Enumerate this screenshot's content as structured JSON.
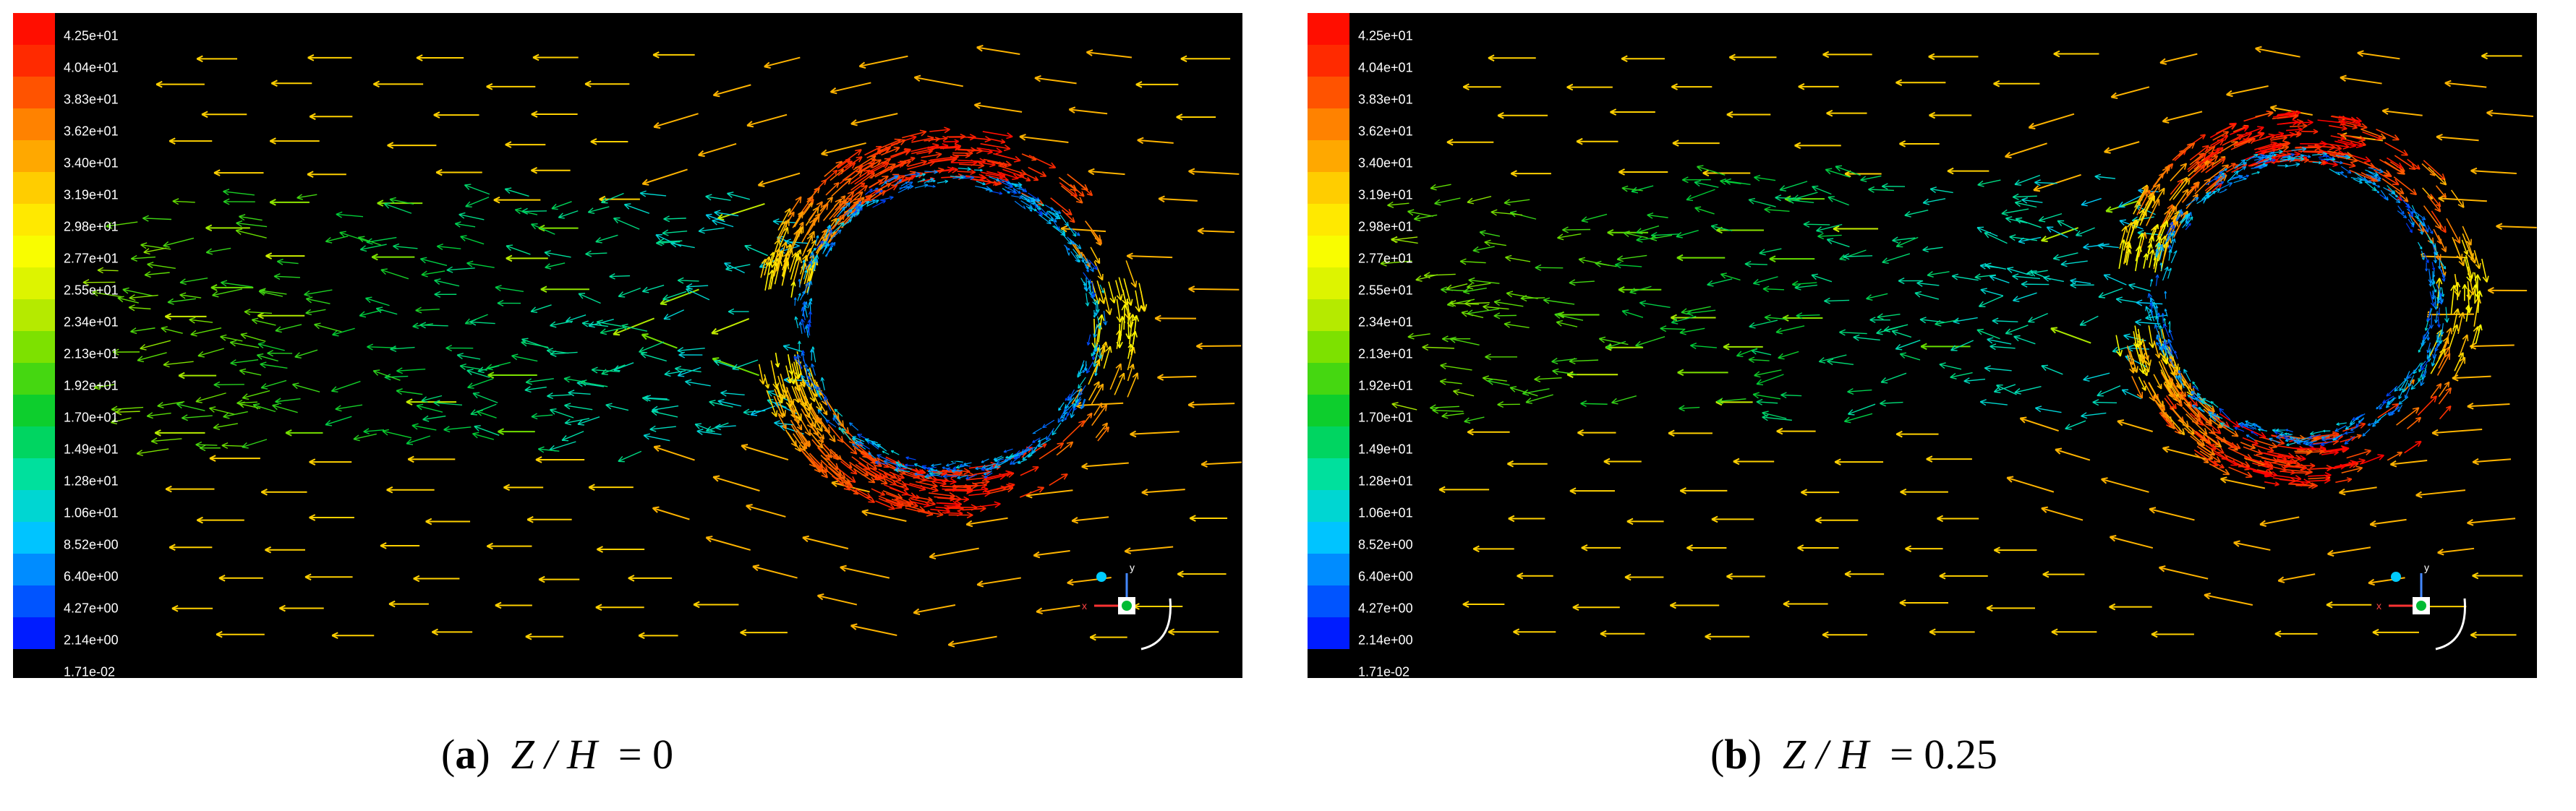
{
  "figure": {
    "panels": [
      {
        "id": "a",
        "caption_tag": "a",
        "caption_var": "Z / H",
        "caption_value": "= 0"
      },
      {
        "id": "b",
        "caption_tag": "b",
        "caption_var": "Z / H",
        "caption_value": "= 0.25"
      }
    ]
  },
  "chart_data": [
    {
      "type": "heatmap",
      "subtype": "velocity-vector-field",
      "panel": "a",
      "title": "",
      "colorbar_ticks": [
        "4.25e+01",
        "4.04e+01",
        "3.83e+01",
        "3.62e+01",
        "3.40e+01",
        "3.19e+01",
        "2.98e+01",
        "2.77e+01",
        "2.55e+01",
        "2.34e+01",
        "2.13e+01",
        "1.92e+01",
        "1.70e+01",
        "1.49e+01",
        "1.28e+01",
        "1.06e+01",
        "8.52e+00",
        "6.40e+00",
        "4.27e+00",
        "2.14e+00",
        "1.71e-02"
      ],
      "colorbar_range": [
        0.0171,
        42.5
      ],
      "colormap": "rainbow",
      "colormap_stops": [
        "#0000ff",
        "#0066ff",
        "#00ccff",
        "#00e0a0",
        "#00cc33",
        "#66dd00",
        "#ccee00",
        "#ffff00",
        "#ffcc00",
        "#ff8800",
        "#ff3300",
        "#ff0000"
      ],
      "background": "#000000",
      "obstacle": "circular cylinder",
      "flow_direction": "right-to-left",
      "axis_triad": [
        "y",
        "x"
      ]
    },
    {
      "type": "heatmap",
      "subtype": "velocity-vector-field",
      "panel": "b",
      "title": "",
      "colorbar_ticks": [
        "4.25e+01",
        "4.04e+01",
        "3.83e+01",
        "3.62e+01",
        "3.40e+01",
        "3.19e+01",
        "2.98e+01",
        "2.77e+01",
        "2.55e+01",
        "2.34e+01",
        "2.13e+01",
        "1.92e+01",
        "1.70e+01",
        "1.49e+01",
        "1.28e+01",
        "1.06e+01",
        "8.52e+00",
        "6.40e+00",
        "4.27e+00",
        "2.14e+00",
        "1.71e-02"
      ],
      "colorbar_range": [
        0.0171,
        42.5
      ],
      "colormap": "rainbow",
      "colormap_stops": [
        "#0000ff",
        "#0066ff",
        "#00ccff",
        "#00e0a0",
        "#00cc33",
        "#66dd00",
        "#ccee00",
        "#ffff00",
        "#ffcc00",
        "#ff8800",
        "#ff3300",
        "#ff0000"
      ],
      "background": "#000000",
      "obstacle": "circular cylinder",
      "flow_direction": "right-to-left",
      "axis_triad": [
        "y",
        "x"
      ]
    }
  ]
}
